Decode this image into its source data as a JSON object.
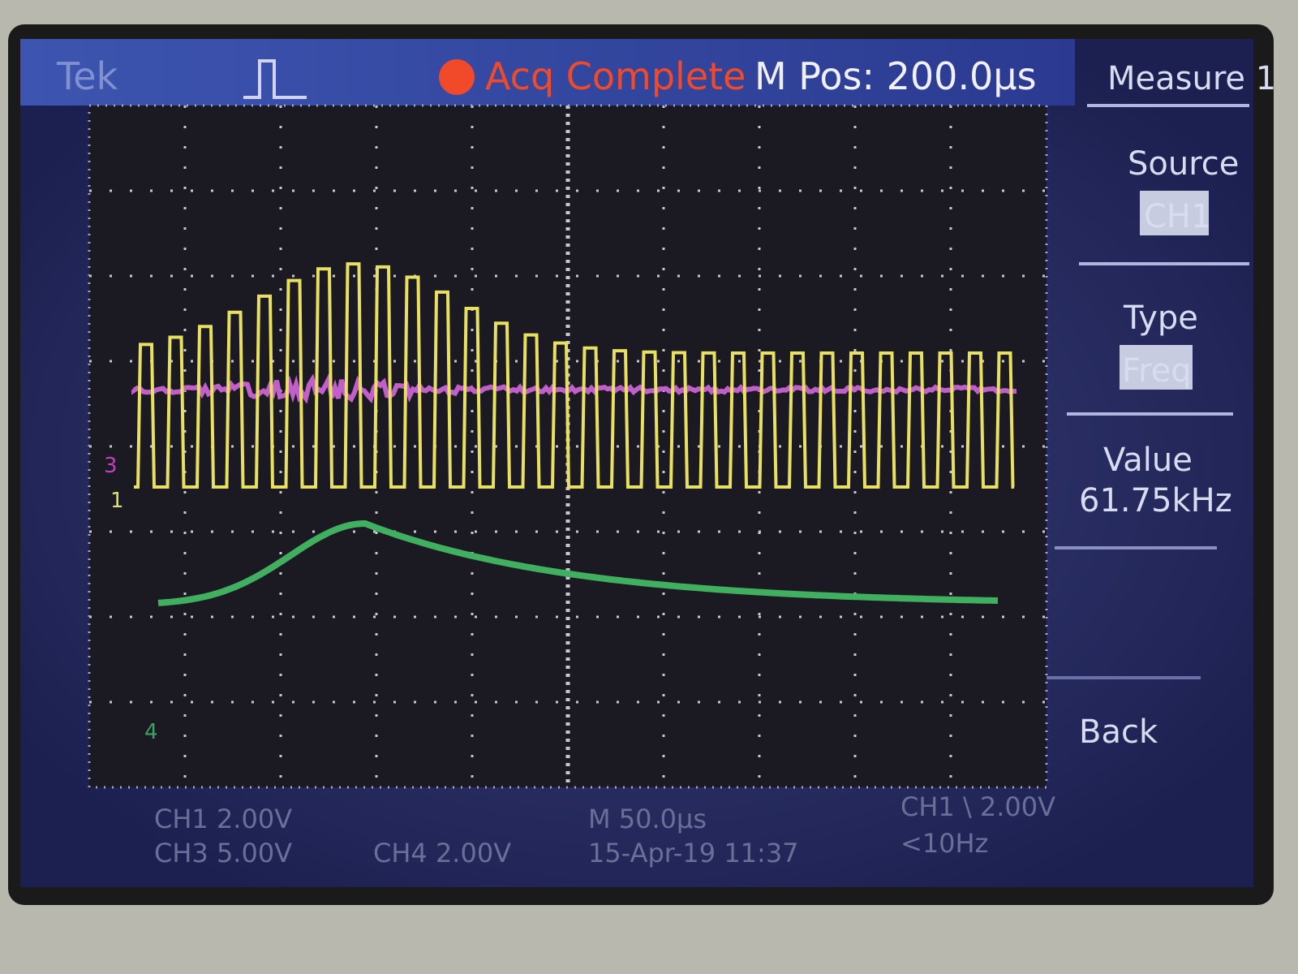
{
  "header": {
    "brand": "Tek",
    "status": "Acq Complete",
    "position": "M Pos: 200.0µs"
  },
  "menu": {
    "title": "Measure 1",
    "items": [
      {
        "label": "Source",
        "value": "CH1"
      },
      {
        "label": "Type",
        "value": "Freq"
      },
      {
        "label": "Value",
        "value": "61.75kHz"
      },
      {
        "label": "Back"
      }
    ]
  },
  "markers": [
    "3",
    "1",
    "4"
  ],
  "footer": {
    "ch1": "CH1 2.00V",
    "ch3": "CH3 5.00V",
    "ch4": "CH4 2.00V",
    "timebase": "M 50.0µs",
    "date": "15-Apr-19 11:37",
    "trigger": "CH1 \\ 2.00V",
    "freq": "<10Hz"
  }
}
